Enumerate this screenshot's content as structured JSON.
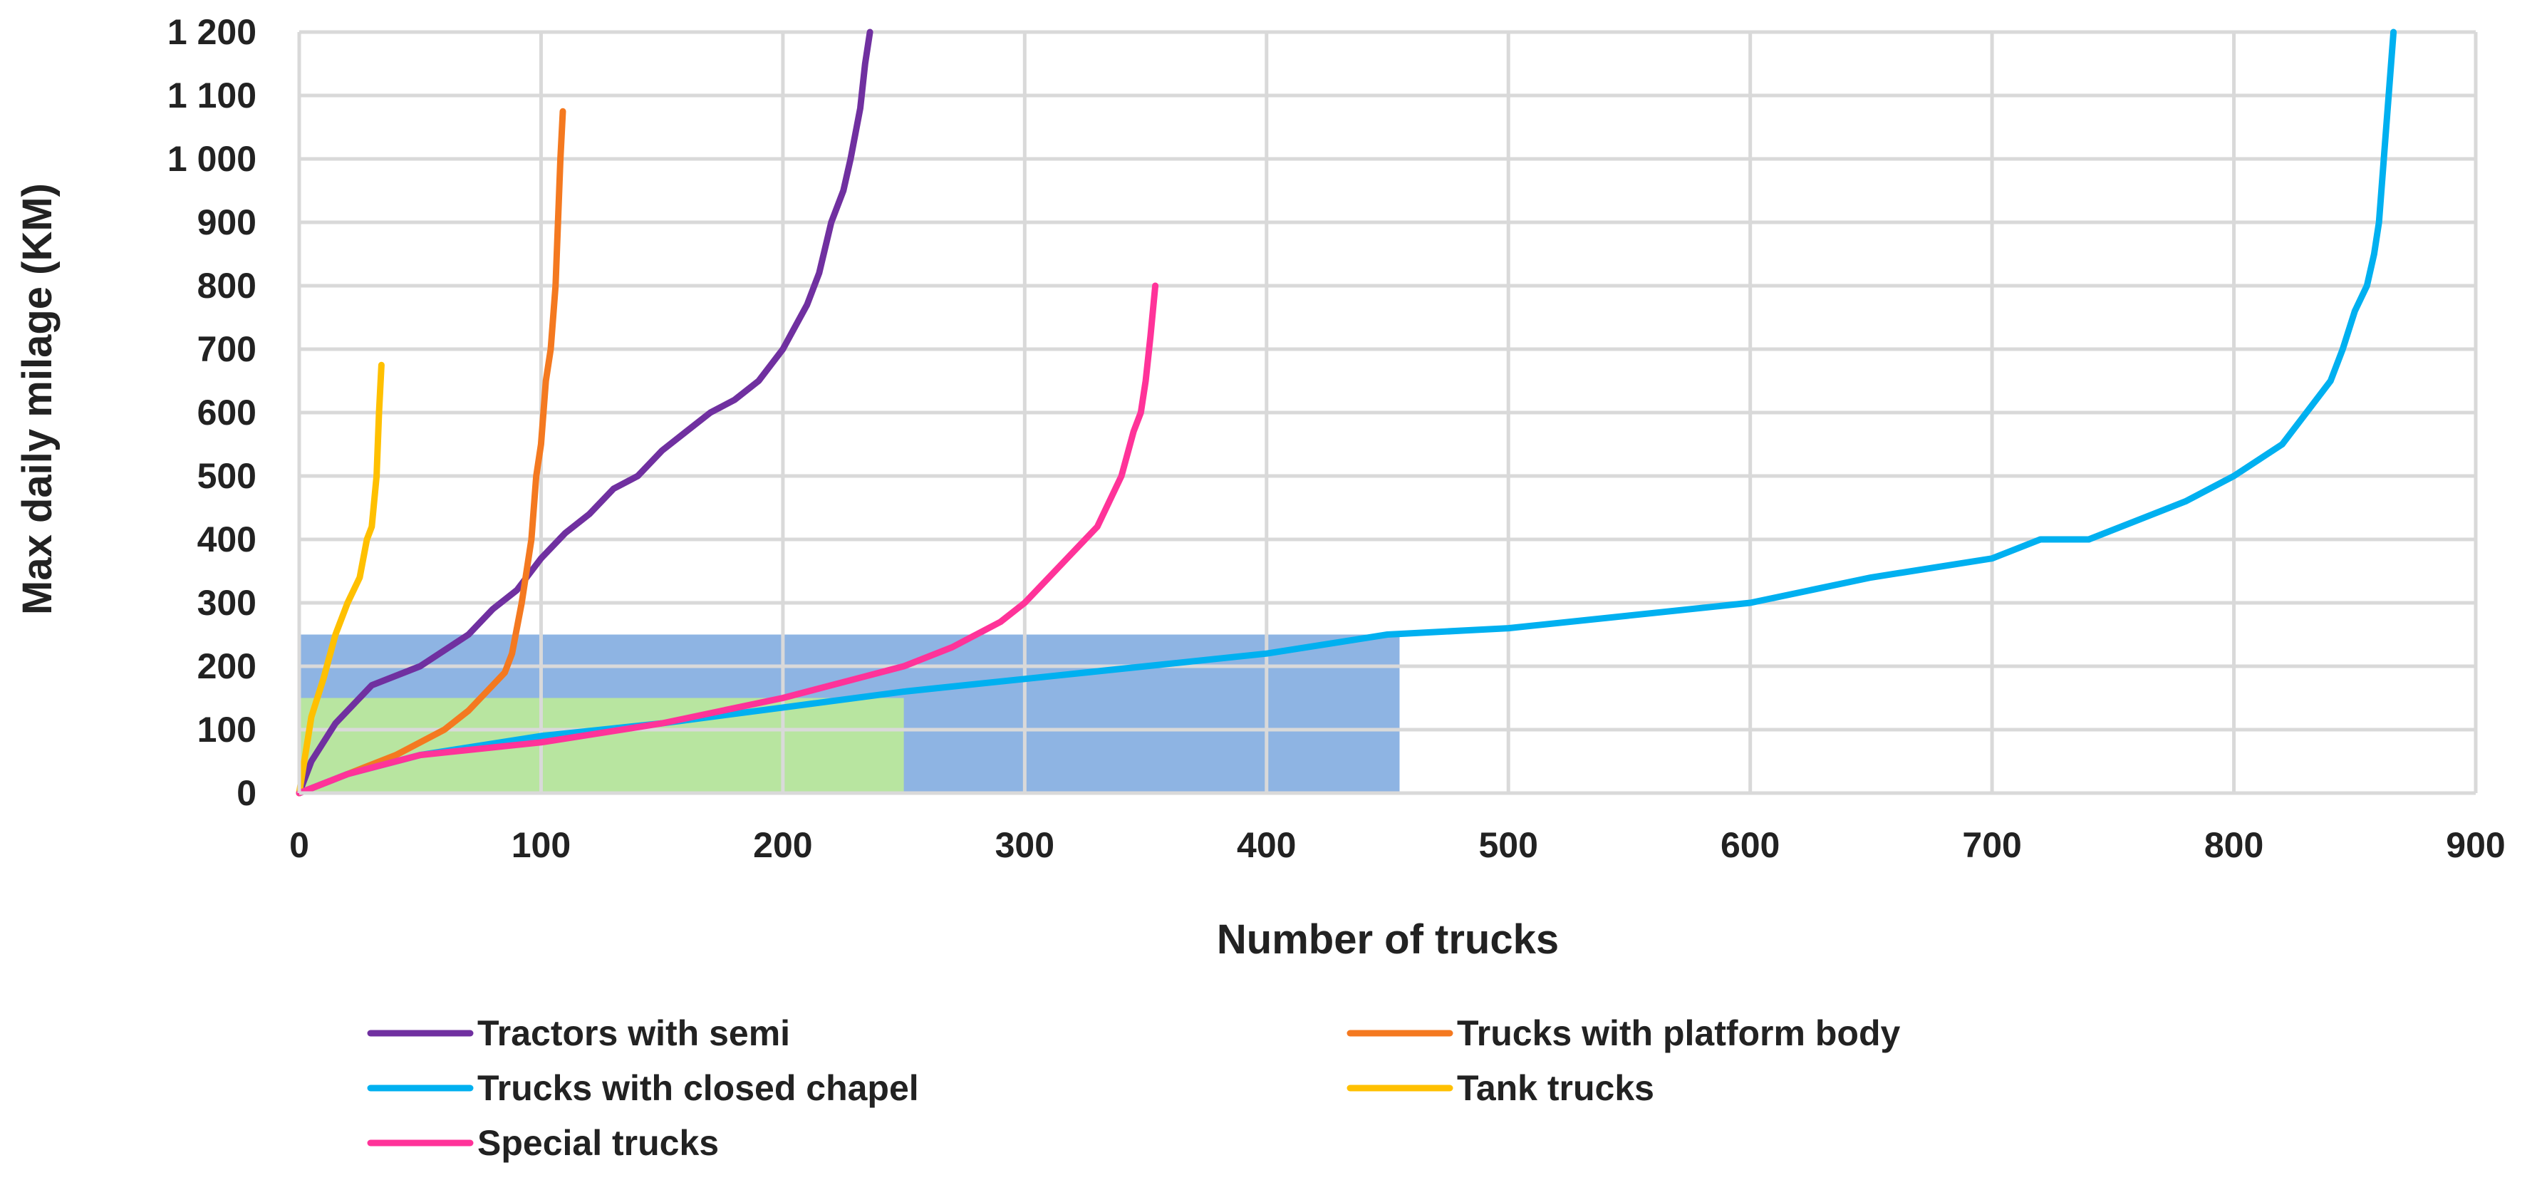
{
  "chart_data": {
    "type": "line",
    "title": "",
    "xlabel": "Number of trucks",
    "ylabel": "Max daily milage (KM)",
    "xlim": [
      0,
      900
    ],
    "ylim": [
      0,
      1200
    ],
    "x_ticks": [
      "0",
      "100",
      "200",
      "300",
      "400",
      "500",
      "600",
      "700",
      "800",
      "900"
    ],
    "y_ticks": [
      "0",
      "100",
      "200",
      "300",
      "400",
      "500",
      "600",
      "700",
      "800",
      "900",
      "1 000",
      "1 100",
      "1 200"
    ],
    "grid": true,
    "legend_position": "bottom",
    "highlight_regions": [
      {
        "x": [
          0,
          455
        ],
        "y": [
          0,
          250
        ],
        "color": "#8eb4e3"
      },
      {
        "x": [
          0,
          250
        ],
        "y": [
          0,
          150
        ],
        "color": "#b8e5a0"
      }
    ],
    "series": [
      {
        "name": "Tractors with semi",
        "color": "#7030a0",
        "x": [
          0,
          5,
          15,
          30,
          50,
          70,
          80,
          90,
          100,
          110,
          120,
          130,
          140,
          150,
          160,
          170,
          180,
          190,
          200,
          210,
          215,
          220,
          225,
          228,
          232,
          234,
          236
        ],
        "y": [
          0,
          50,
          110,
          170,
          200,
          250,
          290,
          320,
          370,
          410,
          440,
          480,
          500,
          540,
          570,
          600,
          620,
          650,
          700,
          770,
          820,
          900,
          950,
          1000,
          1080,
          1150,
          1200
        ]
      },
      {
        "name": "Trucks with platform body",
        "color": "#f47920",
        "x": [
          0,
          20,
          40,
          60,
          70,
          80,
          85,
          88,
          90,
          92,
          94,
          96,
          98,
          100,
          102,
          104,
          106,
          107,
          108,
          109
        ],
        "y": [
          0,
          30,
          60,
          100,
          130,
          170,
          190,
          220,
          260,
          300,
          350,
          400,
          500,
          550,
          650,
          700,
          800,
          900,
          1000,
          1075
        ]
      },
      {
        "name": "Trucks with closed chapel",
        "color": "#00b0f0",
        "x": [
          0,
          20,
          50,
          100,
          150,
          200,
          250,
          300,
          350,
          400,
          450,
          500,
          550,
          600,
          650,
          700,
          720,
          740,
          760,
          780,
          800,
          820,
          830,
          840,
          845,
          850,
          855,
          858,
          860,
          862,
          864,
          866
        ],
        "y": [
          0,
          30,
          60,
          90,
          110,
          135,
          160,
          180,
          200,
          220,
          250,
          260,
          280,
          300,
          340,
          370,
          400,
          400,
          430,
          460,
          500,
          550,
          600,
          650,
          700,
          760,
          800,
          850,
          900,
          1000,
          1100,
          1200
        ]
      },
      {
        "name": "Tank trucks",
        "color": "#ffc000",
        "x": [
          0,
          5,
          10,
          15,
          20,
          25,
          28,
          30,
          32,
          33,
          34
        ],
        "y": [
          0,
          120,
          180,
          250,
          300,
          340,
          400,
          420,
          500,
          600,
          675
        ]
      },
      {
        "name": "Special trucks",
        "color": "#ff3399",
        "x": [
          0,
          20,
          50,
          100,
          150,
          200,
          230,
          250,
          270,
          290,
          300,
          310,
          320,
          330,
          340,
          345,
          348,
          350,
          352,
          354
        ],
        "y": [
          0,
          30,
          60,
          80,
          110,
          150,
          180,
          200,
          230,
          270,
          300,
          340,
          380,
          420,
          500,
          570,
          600,
          650,
          720,
          800
        ]
      }
    ]
  }
}
